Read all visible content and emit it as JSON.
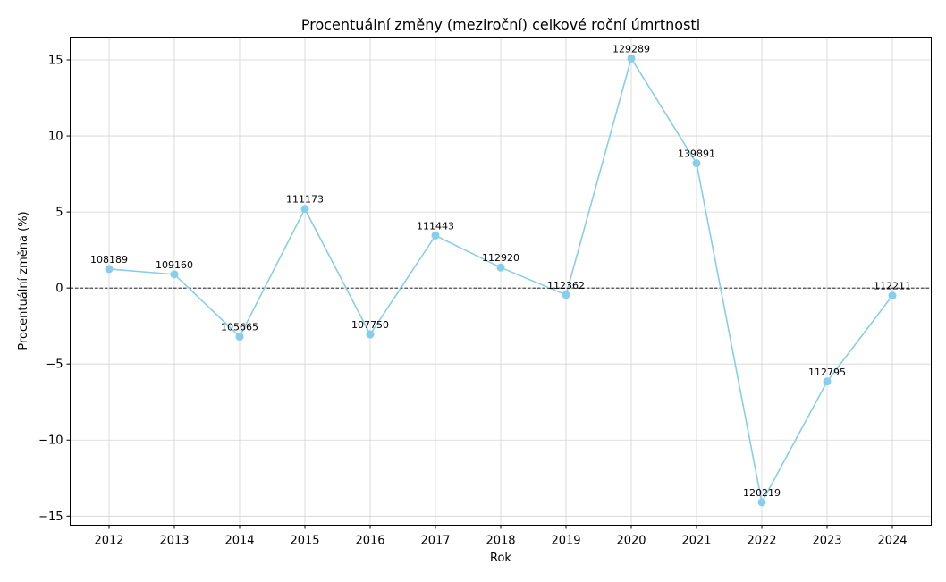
{
  "chart_data": {
    "type": "line",
    "title": "Procentuální změny (meziroční) celkové roční úmrtnosti",
    "xlabel": "Rok",
    "ylabel": "Procentuální změna (%)",
    "x": [
      "2012",
      "2013",
      "2014",
      "2015",
      "2016",
      "2017",
      "2018",
      "2019",
      "2020",
      "2021",
      "2022",
      "2023",
      "2024"
    ],
    "series": [
      {
        "values": [
          1.25,
          0.9,
          -3.2,
          5.2,
          -3.05,
          3.45,
          1.35,
          -0.45,
          15.1,
          8.2,
          -14.1,
          -6.15,
          -0.5
        ],
        "labels": [
          "108189",
          "109160",
          "105665",
          "111173",
          "107750",
          "111443",
          "112920",
          "112362",
          "129289",
          "139891",
          "120219",
          "112795",
          "112211"
        ]
      }
    ],
    "ylim": [
      -15.6,
      16.5
    ],
    "yticks": [
      -15,
      -10,
      -5,
      0,
      5,
      10,
      15
    ],
    "ytick_labels": [
      "−15",
      "−10",
      "−5",
      "0",
      "5",
      "10",
      "15"
    ],
    "grid": true,
    "zero_line": true,
    "colors": {
      "line": "#87ceeb",
      "grid": "#d3d3d3",
      "zero": "#000000"
    }
  }
}
